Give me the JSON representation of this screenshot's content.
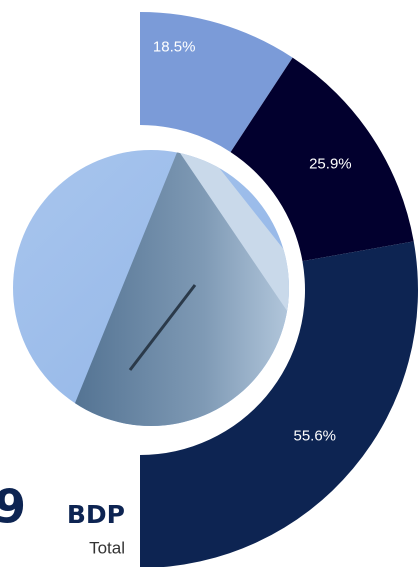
{
  "chart_data": {
    "type": "pie",
    "categories": [
      "18.5%",
      "25.9%",
      "55.6%"
    ],
    "values": [
      18.5,
      25.9,
      55.6
    ],
    "value_labels": [
      "18.5%",
      "25.9%",
      "55.6%"
    ],
    "colors": [
      "#7b9bd8",
      "#02002e",
      "#0d2452"
    ],
    "total_value": "9",
    "total_unit": "BDP",
    "total_label": "Total"
  }
}
